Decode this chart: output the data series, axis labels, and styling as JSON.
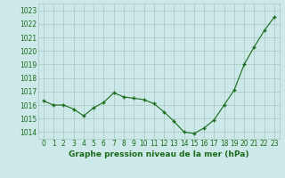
{
  "x": [
    0,
    1,
    2,
    3,
    4,
    5,
    6,
    7,
    8,
    9,
    10,
    11,
    12,
    13,
    14,
    15,
    16,
    17,
    18,
    19,
    20,
    21,
    22,
    23
  ],
  "y": [
    1016.3,
    1016.0,
    1016.0,
    1015.7,
    1015.2,
    1015.8,
    1016.2,
    1016.9,
    1016.6,
    1016.5,
    1016.4,
    1016.1,
    1015.5,
    1014.8,
    1014.0,
    1013.9,
    1014.3,
    1014.9,
    1016.0,
    1017.1,
    1019.0,
    1020.3,
    1021.5,
    1022.5
  ],
  "ylim": [
    1013.5,
    1023.5
  ],
  "yticks": [
    1014,
    1015,
    1016,
    1017,
    1018,
    1019,
    1020,
    1021,
    1022,
    1023
  ],
  "xticks": [
    0,
    1,
    2,
    3,
    4,
    5,
    6,
    7,
    8,
    9,
    10,
    11,
    12,
    13,
    14,
    15,
    16,
    17,
    18,
    19,
    20,
    21,
    22,
    23
  ],
  "xlabel": "Graphe pression niveau de la mer (hPa)",
  "line_color": "#1a6b1a",
  "marker_color": "#1a6b1a",
  "bg_color": "#cce8e8",
  "grid_color": "#a8c8c0",
  "tick_fontsize": 5.5,
  "label_fontsize": 6.5
}
